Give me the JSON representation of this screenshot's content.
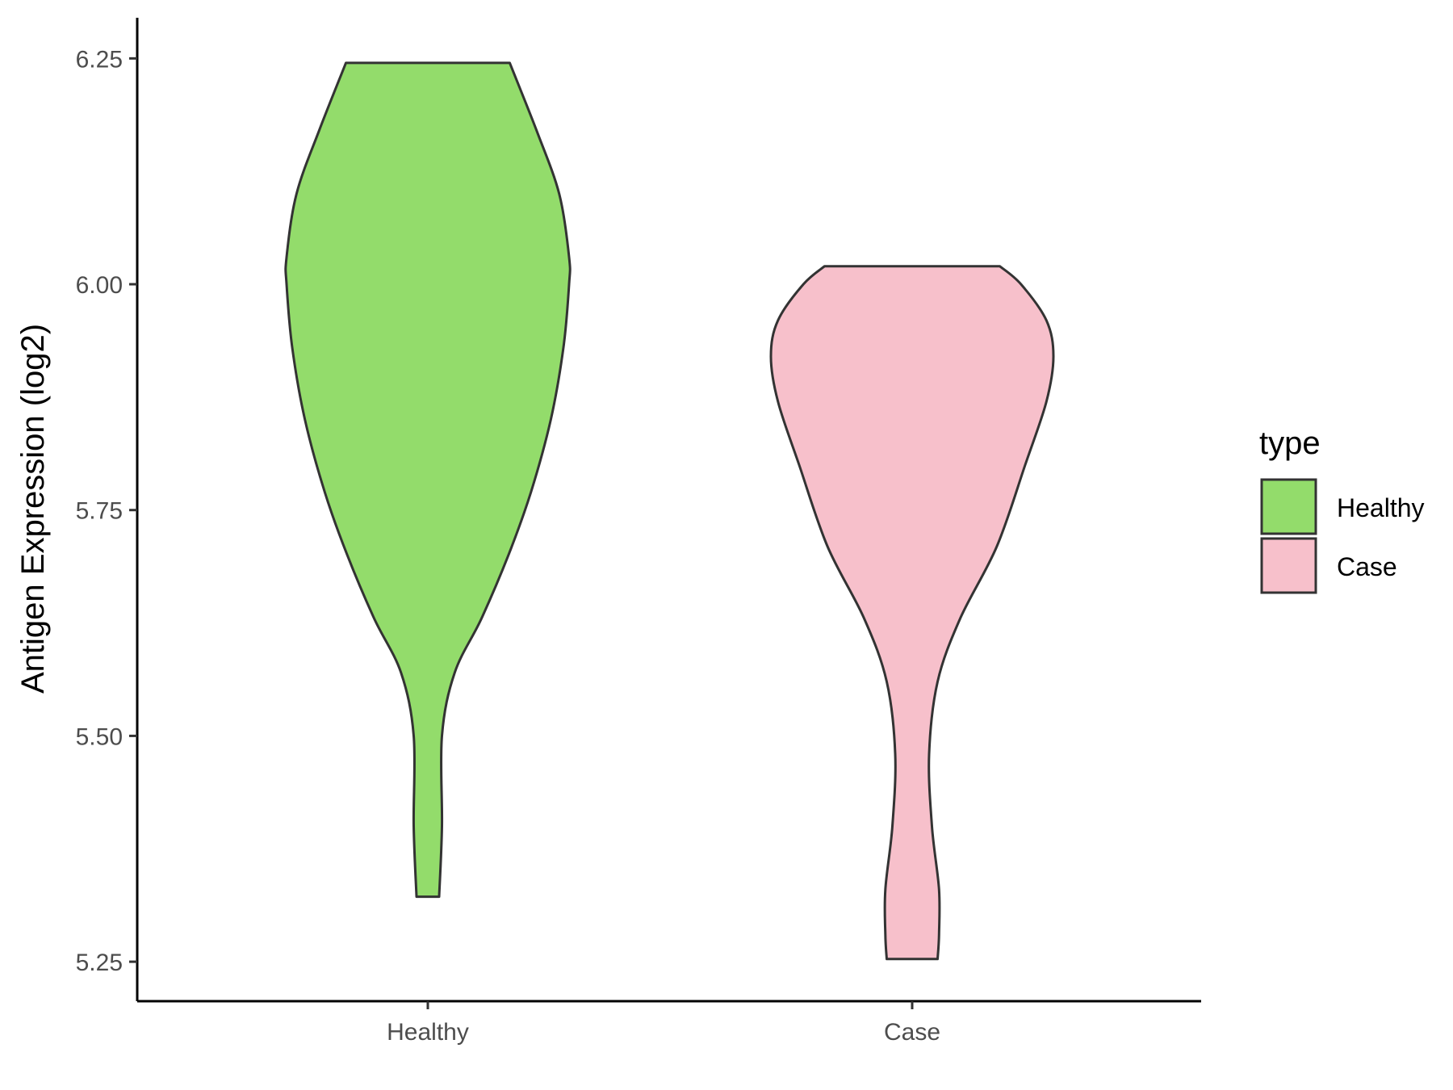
{
  "chart_data": {
    "type": "violin",
    "xlabel": "",
    "ylabel": "Antigen Expression (log2)",
    "ylim": [
      5.2063,
      6.295
    ],
    "yticks": [
      "5.25",
      "5.50",
      "5.75",
      "6.00",
      "6.25"
    ],
    "categories": [
      "Healthy",
      "Case"
    ],
    "grid": false,
    "legend": {
      "title": "type",
      "placement": "right",
      "items": [
        {
          "label": "Healthy",
          "color": "#93DC6B"
        },
        {
          "label": "Case",
          "color": "#F7C0CB"
        }
      ]
    },
    "series": [
      {
        "category": "Healthy",
        "color": "#93DC6B",
        "min": 5.322,
        "max": 6.245,
        "density_profile": [
          [
            5.322,
            0.08
          ],
          [
            5.4,
            0.1
          ],
          [
            5.5,
            0.1
          ],
          [
            5.57,
            0.19
          ],
          [
            5.63,
            0.38
          ],
          [
            5.7,
            0.57
          ],
          [
            5.77,
            0.73
          ],
          [
            5.85,
            0.87
          ],
          [
            5.93,
            0.96
          ],
          [
            6.0,
            1.0
          ],
          [
            6.03,
            1.0
          ],
          [
            6.1,
            0.93
          ],
          [
            6.17,
            0.77
          ],
          [
            6.245,
            0.58
          ]
        ]
      },
      {
        "category": "Case",
        "color": "#F7C0CB",
        "min": 5.253,
        "max": 6.02,
        "density_profile": [
          [
            5.253,
            0.18
          ],
          [
            5.28,
            0.19
          ],
          [
            5.33,
            0.19
          ],
          [
            5.4,
            0.14
          ],
          [
            5.48,
            0.12
          ],
          [
            5.56,
            0.18
          ],
          [
            5.63,
            0.34
          ],
          [
            5.71,
            0.6
          ],
          [
            5.8,
            0.8
          ],
          [
            5.87,
            0.95
          ],
          [
            5.92,
            1.0
          ],
          [
            5.96,
            0.95
          ],
          [
            6.0,
            0.77
          ],
          [
            6.02,
            0.62
          ]
        ]
      }
    ]
  }
}
